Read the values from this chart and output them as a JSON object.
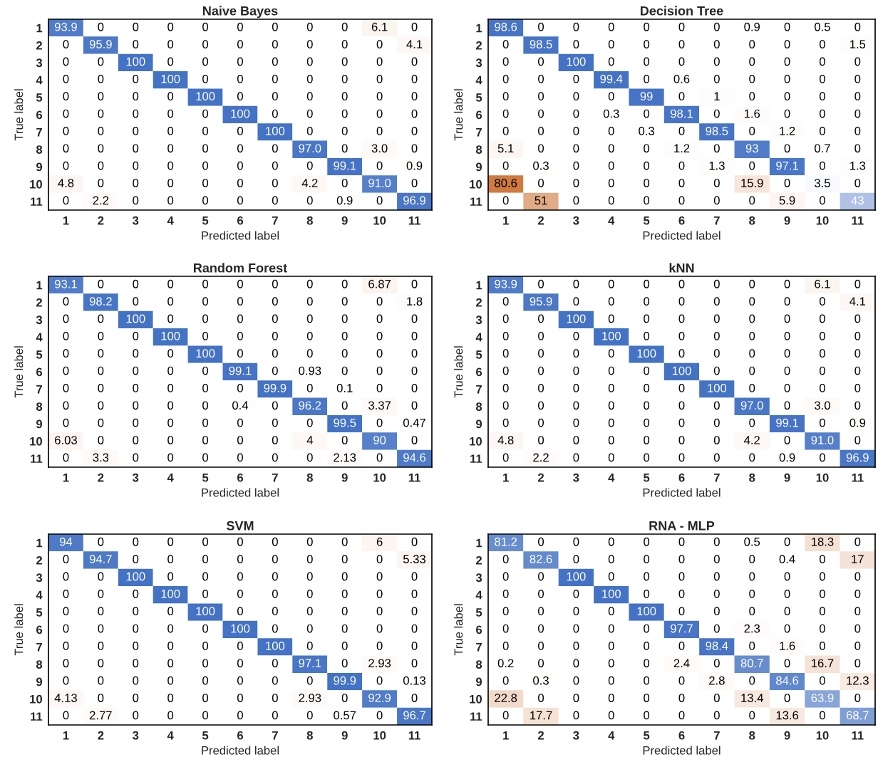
{
  "chart_data": [
    {
      "type": "heatmap",
      "title": "Naive Bayes",
      "xlabel": "Predicted label",
      "ylabel": "True label",
      "colors": [
        "#4472c4",
        "#c55a11"
      ],
      "categories": [
        "1",
        "2",
        "3",
        "4",
        "5",
        "6",
        "7",
        "8",
        "9",
        "10",
        "11"
      ],
      "y_categories": [
        "1",
        "2",
        "3",
        "4",
        "5",
        "6",
        "7",
        "8",
        "9",
        "10",
        "11"
      ],
      "cells": [
        [
          93.9,
          0,
          0,
          0,
          0,
          0,
          0,
          0,
          0,
          6.1,
          0
        ],
        [
          0,
          95.9,
          0,
          0,
          0,
          0,
          0,
          0,
          0,
          0,
          4.1
        ],
        [
          0,
          0,
          100,
          0,
          0,
          0,
          0,
          0,
          0,
          0,
          0
        ],
        [
          0,
          0,
          0,
          100,
          0,
          0,
          0,
          0,
          0,
          0,
          0
        ],
        [
          0,
          0,
          0,
          0,
          100,
          0,
          0,
          0,
          0,
          0,
          0
        ],
        [
          0,
          0,
          0,
          0,
          0,
          100,
          0,
          0,
          0,
          0,
          0
        ],
        [
          0,
          0,
          0,
          0,
          0,
          0,
          100,
          0,
          0,
          0,
          0
        ],
        [
          0,
          0,
          0,
          0,
          0,
          0,
          0,
          97.0,
          0,
          3.0,
          0
        ],
        [
          0,
          0,
          0,
          0,
          0,
          0,
          0,
          0,
          99.1,
          0,
          0.9
        ],
        [
          4.8,
          0,
          0,
          0,
          0,
          0,
          0,
          4.2,
          0,
          91.0,
          0
        ],
        [
          0,
          2.2,
          0,
          0,
          0,
          0,
          0,
          0,
          0.9,
          0,
          96.9
        ]
      ],
      "cell_labels": [
        [
          "93.9",
          "0",
          "0",
          "0",
          "0",
          "0",
          "0",
          "0",
          "0",
          "6.1",
          "0"
        ],
        [
          "0",
          "95.9",
          "0",
          "0",
          "0",
          "0",
          "0",
          "0",
          "0",
          "0",
          "4.1"
        ],
        [
          "0",
          "0",
          "100",
          "0",
          "0",
          "0",
          "0",
          "0",
          "0",
          "0",
          "0"
        ],
        [
          "0",
          "0",
          "0",
          "100",
          "0",
          "0",
          "0",
          "0",
          "0",
          "0",
          "0"
        ],
        [
          "0",
          "0",
          "0",
          "0",
          "100",
          "0",
          "0",
          "0",
          "0",
          "0",
          "0"
        ],
        [
          "0",
          "0",
          "0",
          "0",
          "0",
          "100",
          "0",
          "0",
          "0",
          "0",
          "0"
        ],
        [
          "0",
          "0",
          "0",
          "0",
          "0",
          "0",
          "100",
          "0",
          "0",
          "0",
          "0"
        ],
        [
          "0",
          "0",
          "0",
          "0",
          "0",
          "0",
          "0",
          "97.0",
          "0",
          "3.0",
          "0"
        ],
        [
          "0",
          "0",
          "0",
          "0",
          "0",
          "0",
          "0",
          "0",
          "99.1",
          "0",
          "0.9"
        ],
        [
          "4.8",
          "0",
          "0",
          "0",
          "0",
          "0",
          "0",
          "4.2",
          "0",
          "91.0",
          "0"
        ],
        [
          "0",
          "2.2",
          "0",
          "0",
          "0",
          "0",
          "0",
          "0",
          "0.9",
          "0",
          "96.9"
        ]
      ]
    },
    {
      "type": "heatmap",
      "data_labels": true,
      "title": "Decision Tree",
      "xlabel": "Predicted label",
      "ylabel": "True label",
      "colors": [
        "#4472c4",
        "#c55a11"
      ],
      "categories": [
        "1",
        "2",
        "3",
        "4",
        "5",
        "6",
        "7",
        "8",
        "9",
        "10",
        "11"
      ],
      "y_categories": [
        "1",
        "2",
        "3",
        "4",
        "5",
        "6",
        "7",
        "8",
        "9",
        "10",
        "11"
      ],
      "cells": [
        [
          98.6,
          0,
          0,
          0,
          0,
          0,
          0,
          0.9,
          0,
          0.5,
          0
        ],
        [
          0,
          98.5,
          0,
          0,
          0,
          0,
          0,
          0,
          0,
          0,
          1.5
        ],
        [
          0,
          0,
          100,
          0,
          0,
          0,
          0,
          0,
          0,
          0,
          0
        ],
        [
          0,
          0,
          0,
          99.4,
          0,
          0.6,
          0,
          0,
          0,
          0,
          0
        ],
        [
          0,
          0,
          0,
          0,
          99,
          0,
          1,
          0,
          0,
          0,
          0
        ],
        [
          0,
          0,
          0,
          0.3,
          0,
          98.1,
          0,
          1.6,
          0,
          0,
          0
        ],
        [
          0,
          0,
          0,
          0,
          0.3,
          0,
          98.5,
          0,
          1.2,
          0,
          0
        ],
        [
          5.1,
          0,
          0,
          0,
          0,
          1.2,
          0,
          93,
          0,
          0.7,
          0
        ],
        [
          0,
          0.3,
          0,
          0,
          0,
          0,
          1.3,
          0,
          97.1,
          0,
          1.3
        ],
        [
          80.6,
          0,
          0,
          0,
          0,
          0,
          0,
          15.9,
          0,
          3.5,
          0
        ],
        [
          0,
          51,
          0,
          0,
          0,
          0,
          0,
          0,
          5.9,
          0,
          43
        ]
      ]
    },
    {
      "type": "heatmap",
      "data_labels": true,
      "title": "Random Forest",
      "xlabel": "Predicted label",
      "ylabel": "True label",
      "colors": [
        "#4472c4",
        "#c55a11"
      ],
      "categories": [
        "1",
        "2",
        "3",
        "4",
        "5",
        "6",
        "7",
        "8",
        "9",
        "10",
        "11"
      ],
      "y_categories": [
        "1",
        "2",
        "3",
        "4",
        "5",
        "6",
        "7",
        "8",
        "9",
        "10",
        "11"
      ],
      "cells": [
        [
          93.1,
          0,
          0,
          0,
          0,
          0,
          0,
          0,
          0,
          6.87,
          0
        ],
        [
          0,
          98.2,
          0,
          0,
          0,
          0,
          0,
          0,
          0,
          0,
          1.8
        ],
        [
          0,
          0,
          100,
          0,
          0,
          0,
          0,
          0,
          0,
          0,
          0
        ],
        [
          0,
          0,
          0,
          100,
          0,
          0,
          0,
          0,
          0,
          0,
          0
        ],
        [
          0,
          0,
          0,
          0,
          100,
          0,
          0,
          0,
          0,
          0,
          0
        ],
        [
          0,
          0,
          0,
          0,
          0,
          99.1,
          0,
          0.93,
          0,
          0,
          0
        ],
        [
          0,
          0,
          0,
          0,
          0,
          0,
          99.9,
          0,
          0.1,
          0,
          0
        ],
        [
          0,
          0,
          0,
          0,
          0,
          0.4,
          0,
          96.2,
          0,
          3.37,
          0
        ],
        [
          0,
          0,
          0,
          0,
          0,
          0,
          0,
          0,
          99.5,
          0,
          0.47
        ],
        [
          6.03,
          0,
          0,
          0,
          0,
          0,
          0,
          4,
          0,
          90,
          0
        ],
        [
          0,
          3.3,
          0,
          0,
          0,
          0,
          0,
          0,
          2.13,
          0,
          94.6
        ]
      ]
    },
    {
      "type": "heatmap",
      "title": "kNN",
      "xlabel": "Predicted label",
      "ylabel": "True label",
      "colors": [
        "#4472c4",
        "#c55a11"
      ],
      "categories": [
        "1",
        "2",
        "3",
        "4",
        "5",
        "6",
        "7",
        "8",
        "9",
        "10",
        "11"
      ],
      "y_categories": [
        "1",
        "2",
        "3",
        "4",
        "5",
        "6",
        "7",
        "8",
        "9",
        "10",
        "11"
      ],
      "cells": [
        [
          93.9,
          0,
          0,
          0,
          0,
          0,
          0,
          0,
          0,
          6.1,
          0
        ],
        [
          0,
          95.9,
          0,
          0,
          0,
          0,
          0,
          0,
          0,
          0,
          4.1
        ],
        [
          0,
          0,
          100,
          0,
          0,
          0,
          0,
          0,
          0,
          0,
          0
        ],
        [
          0,
          0,
          0,
          100,
          0,
          0,
          0,
          0,
          0,
          0,
          0
        ],
        [
          0,
          0,
          0,
          0,
          100,
          0,
          0,
          0,
          0,
          0,
          0
        ],
        [
          0,
          0,
          0,
          0,
          0,
          100,
          0,
          0,
          0,
          0,
          0
        ],
        [
          0,
          0,
          0,
          0,
          0,
          0,
          100,
          0,
          0,
          0,
          0
        ],
        [
          0,
          0,
          0,
          0,
          0,
          0,
          0,
          97.0,
          0,
          3.0,
          0
        ],
        [
          0,
          0,
          0,
          0,
          0,
          0,
          0,
          0,
          99.1,
          0,
          0.9
        ],
        [
          4.8,
          0,
          0,
          0,
          0,
          0,
          0,
          4.2,
          0,
          91.0,
          0
        ],
        [
          0,
          2.2,
          0,
          0,
          0,
          0,
          0,
          0,
          0.9,
          0,
          96.9
        ]
      ],
      "cell_labels": [
        [
          "93.9",
          "0",
          "0",
          "0",
          "0",
          "0",
          "0",
          "0",
          "0",
          "6.1",
          "0"
        ],
        [
          "0",
          "95.9",
          "0",
          "0",
          "0",
          "0",
          "0",
          "0",
          "0",
          "0",
          "4.1"
        ],
        [
          "0",
          "0",
          "100",
          "0",
          "0",
          "0",
          "0",
          "0",
          "0",
          "0",
          "0"
        ],
        [
          "0",
          "0",
          "0",
          "100",
          "0",
          "0",
          "0",
          "0",
          "0",
          "0",
          "0"
        ],
        [
          "0",
          "0",
          "0",
          "0",
          "100",
          "0",
          "0",
          "0",
          "0",
          "0",
          "0"
        ],
        [
          "0",
          "0",
          "0",
          "0",
          "0",
          "100",
          "0",
          "0",
          "0",
          "0",
          "0"
        ],
        [
          "0",
          "0",
          "0",
          "0",
          "0",
          "0",
          "100",
          "0",
          "0",
          "0",
          "0"
        ],
        [
          "0",
          "0",
          "0",
          "0",
          "0",
          "0",
          "0",
          "97.0",
          "0",
          "3.0",
          "0"
        ],
        [
          "0",
          "0",
          "0",
          "0",
          "0",
          "0",
          "0",
          "0",
          "99.1",
          "0",
          "0.9"
        ],
        [
          "4.8",
          "0",
          "0",
          "0",
          "0",
          "0",
          "0",
          "4.2",
          "0",
          "91.0",
          "0"
        ],
        [
          "0",
          "2.2",
          "0",
          "0",
          "0",
          "0",
          "0",
          "0",
          "0.9",
          "0",
          "96.9"
        ]
      ]
    },
    {
      "type": "heatmap",
      "data_labels": true,
      "title": "SVM",
      "xlabel": "Predicted label",
      "ylabel": "True label",
      "colors": [
        "#4472c4",
        "#c55a11"
      ],
      "categories": [
        "1",
        "2",
        "3",
        "4",
        "5",
        "6",
        "7",
        "8",
        "9",
        "10",
        "11"
      ],
      "y_categories": [
        "1",
        "2",
        "3",
        "4",
        "5",
        "6",
        "7",
        "8",
        "9",
        "10",
        "11"
      ],
      "cells": [
        [
          94,
          0,
          0,
          0,
          0,
          0,
          0,
          0,
          0,
          6,
          0
        ],
        [
          0,
          94.7,
          0,
          0,
          0,
          0,
          0,
          0,
          0,
          0,
          5.33
        ],
        [
          0,
          0,
          100,
          0,
          0,
          0,
          0,
          0,
          0,
          0,
          0
        ],
        [
          0,
          0,
          0,
          100,
          0,
          0,
          0,
          0,
          0,
          0,
          0
        ],
        [
          0,
          0,
          0,
          0,
          100,
          0,
          0,
          0,
          0,
          0,
          0
        ],
        [
          0,
          0,
          0,
          0,
          0,
          100,
          0,
          0,
          0,
          0,
          0
        ],
        [
          0,
          0,
          0,
          0,
          0,
          0,
          100,
          0,
          0,
          0,
          0
        ],
        [
          0,
          0,
          0,
          0,
          0,
          0,
          0,
          97.1,
          0,
          2.93,
          0
        ],
        [
          0,
          0,
          0,
          0,
          0,
          0,
          0,
          0,
          99.9,
          0,
          0.13
        ],
        [
          4.13,
          0,
          0,
          0,
          0,
          0,
          0,
          2.93,
          0,
          92.9,
          0
        ],
        [
          0,
          2.77,
          0,
          0,
          0,
          0,
          0,
          0,
          0.57,
          0,
          96.7
        ]
      ]
    },
    {
      "type": "heatmap",
      "data_labels": true,
      "title": "RNA - MLP",
      "xlabel": "Predicted label",
      "ylabel": "True label",
      "colors": [
        "#4472c4",
        "#c55a11"
      ],
      "categories": [
        "1",
        "2",
        "3",
        "4",
        "5",
        "6",
        "7",
        "8",
        "9",
        "10",
        "11"
      ],
      "y_categories": [
        "1",
        "2",
        "3",
        "4",
        "5",
        "6",
        "7",
        "8",
        "9",
        "10",
        "11"
      ],
      "cells": [
        [
          81.2,
          0,
          0,
          0,
          0,
          0,
          0,
          0.5,
          0,
          18.3,
          0
        ],
        [
          0,
          82.6,
          0,
          0,
          0,
          0,
          0,
          0,
          0.4,
          0,
          17
        ],
        [
          0,
          0,
          100,
          0,
          0,
          0,
          0,
          0,
          0,
          0,
          0
        ],
        [
          0,
          0,
          0,
          100,
          0,
          0,
          0,
          0,
          0,
          0,
          0
        ],
        [
          0,
          0,
          0,
          0,
          100,
          0,
          0,
          0,
          0,
          0,
          0
        ],
        [
          0,
          0,
          0,
          0,
          0,
          97.7,
          0,
          2.3,
          0,
          0,
          0
        ],
        [
          0,
          0,
          0,
          0,
          0,
          0,
          98.4,
          0,
          1.6,
          0,
          0
        ],
        [
          0.2,
          0,
          0,
          0,
          0,
          2.4,
          0,
          80.7,
          0,
          16.7,
          0
        ],
        [
          0,
          0.3,
          0,
          0,
          0,
          0,
          2.8,
          0,
          84.6,
          0,
          12.3
        ],
        [
          22.8,
          0,
          0,
          0,
          0,
          0,
          0,
          13.4,
          0,
          63.9,
          0
        ],
        [
          0,
          17.7,
          0,
          0,
          0,
          0,
          0,
          0,
          13.6,
          0,
          68.7
        ]
      ]
    }
  ]
}
